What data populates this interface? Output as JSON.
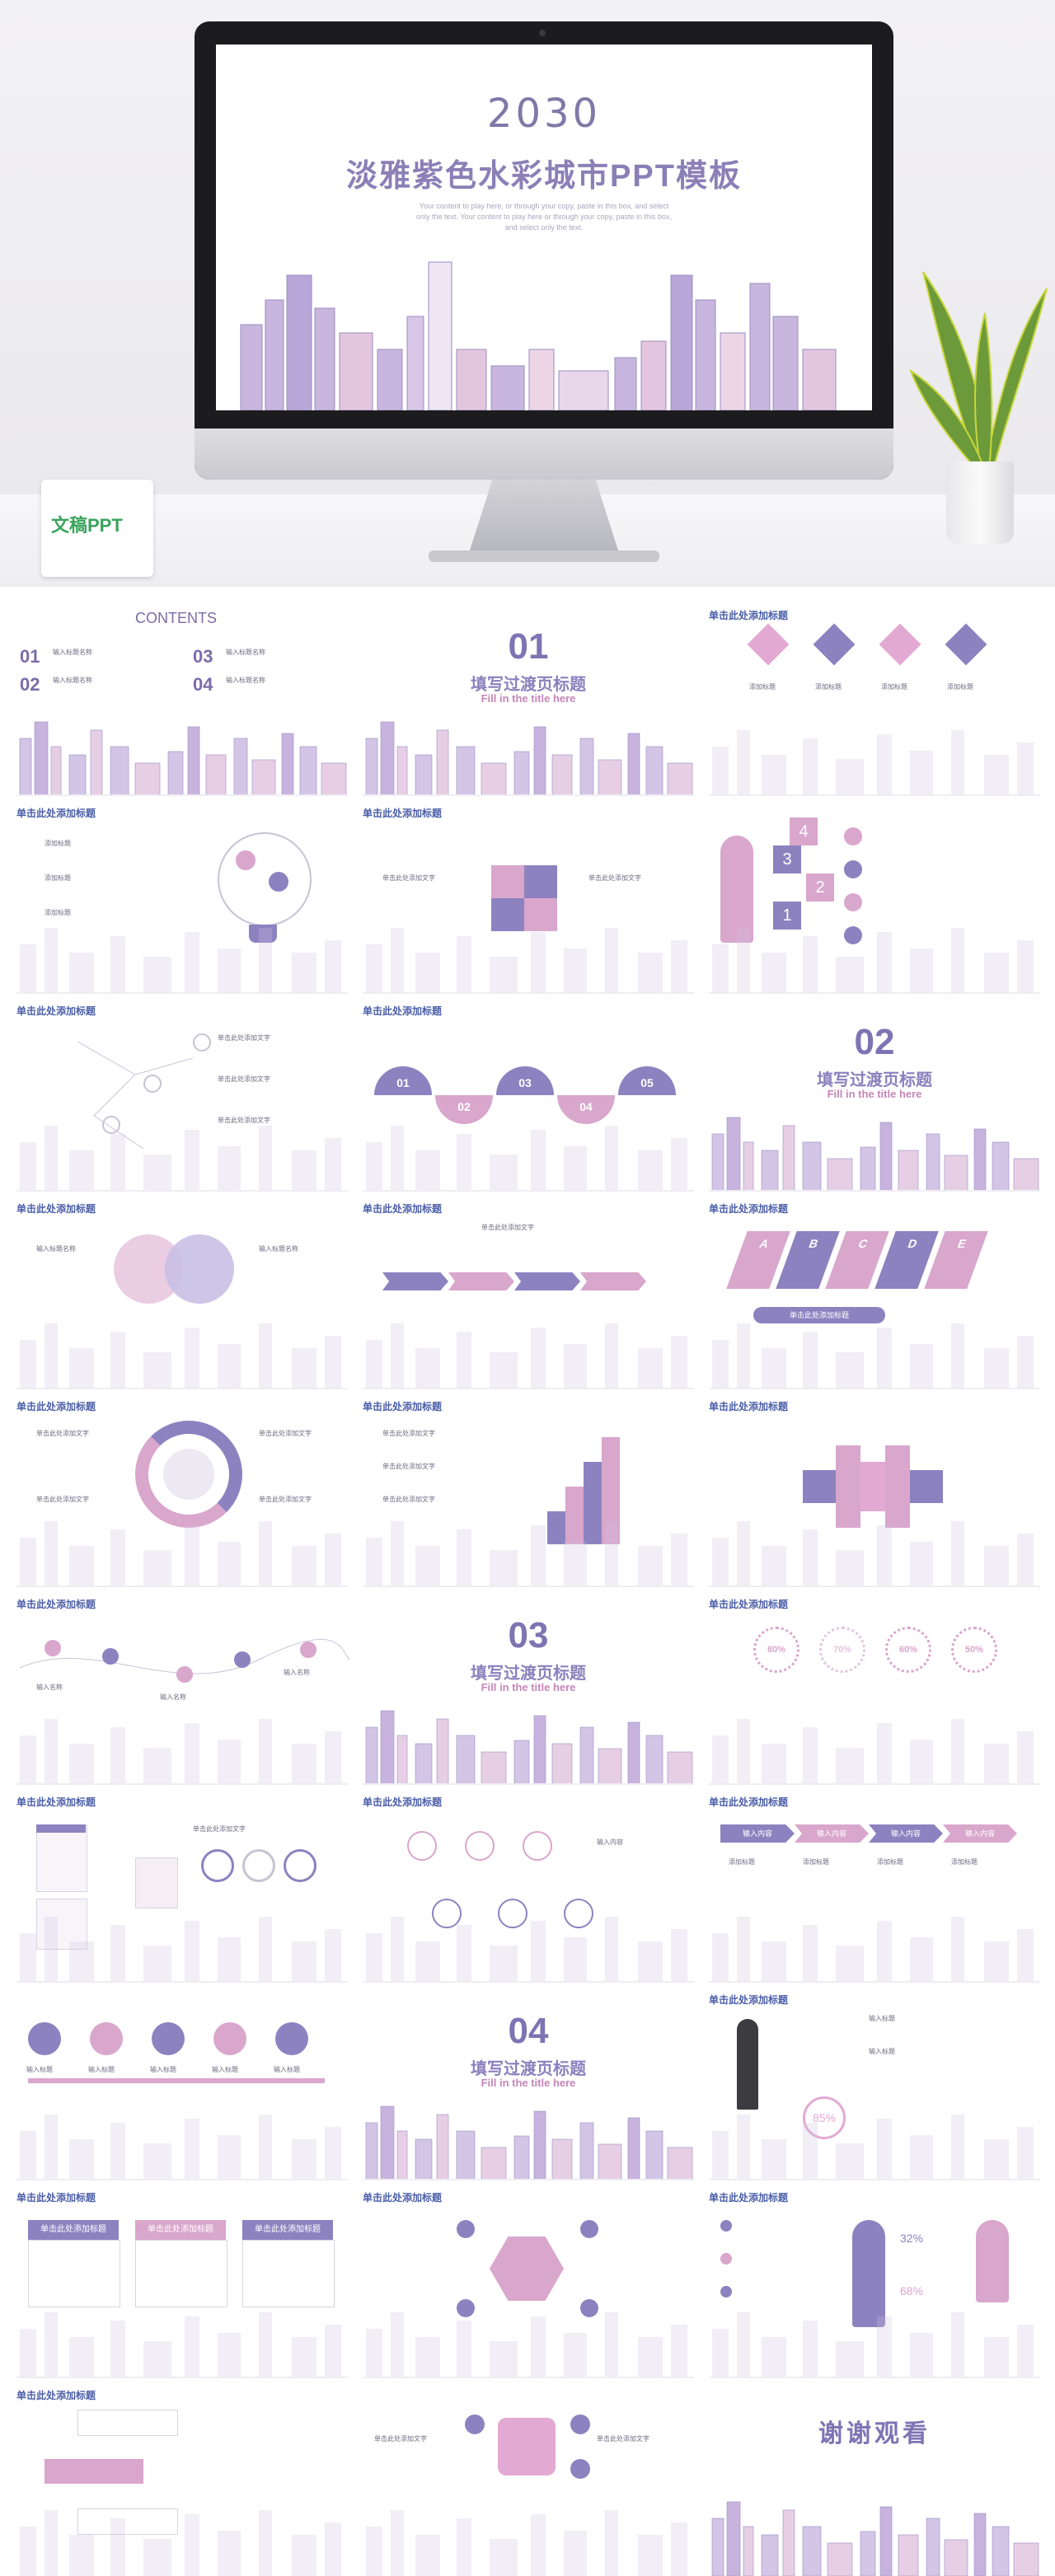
{
  "hero": {
    "year": "2030",
    "title": "淡雅紫色水彩城市PPT模板",
    "subtitle": "Your content to play here, or through your copy, paste in this box, and select only the text. Your content to play here or through your copy, paste in this box, and select only the text.",
    "calendar_logo": "文稿PPT"
  },
  "slides": {
    "contents": {
      "title": "CONTENTS",
      "items": [
        {
          "num": "01",
          "label": "输入标题名称"
        },
        {
          "num": "02",
          "label": "输入标题名称"
        },
        {
          "num": "03",
          "label": "输入标题名称"
        },
        {
          "num": "04",
          "label": "输入标题名称"
        }
      ]
    },
    "section1": {
      "num": "01",
      "title": "填写过渡页标题",
      "en": "Fill in the title here"
    },
    "section2": {
      "num": "02",
      "title": "填写过渡页标题",
      "en": "Fill in the title here"
    },
    "section3": {
      "num": "03",
      "title": "填写过渡页标题",
      "en": "Fill in the title here"
    },
    "section4": {
      "num": "04",
      "title": "填写过渡页标题",
      "en": "Fill in the title here"
    },
    "header": "单击此处添加标题",
    "thanks": "谢谢观看",
    "add_title": "添加标题",
    "input_label": "输入标题",
    "input_content": "输入内容",
    "input_name": "输入名称",
    "click_text": "单击此处添加文字",
    "click_title": "单击此处添加标题",
    "input_title_name": "输入标题名称",
    "percents": [
      "80%",
      "70%",
      "60%",
      "50%"
    ],
    "pct_85": "85",
    "pct_sign": "%",
    "pct_32": "32%",
    "pct_68": "68%",
    "shapes_nums": [
      "01",
      "02",
      "03",
      "04",
      "05"
    ],
    "stack_nums": [
      "1",
      "2",
      "3",
      "4"
    ],
    "letters": [
      "A",
      "B",
      "C",
      "D",
      "E"
    ]
  },
  "colors": {
    "purple": "#8d82c0",
    "pink": "#d9a6cc",
    "title_blue": "#4b5ea8"
  }
}
